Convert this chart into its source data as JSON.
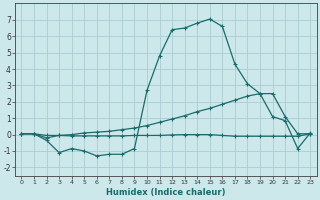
{
  "background_color": "#cce8eb",
  "grid_color": "#aacdd2",
  "line_color": "#1a6b6b",
  "marker": "+",
  "xlabel": "Humidex (Indice chaleur)",
  "xlim": [
    -0.5,
    23.5
  ],
  "ylim": [
    -2.5,
    8.0
  ],
  "xticks": [
    0,
    1,
    2,
    3,
    4,
    5,
    6,
    7,
    8,
    9,
    10,
    11,
    12,
    13,
    14,
    15,
    16,
    17,
    18,
    19,
    20,
    21,
    22,
    23
  ],
  "yticks": [
    -2,
    -1,
    0,
    1,
    2,
    3,
    4,
    5,
    6,
    7
  ],
  "curve1_x": [
    0,
    1,
    2,
    3,
    4,
    5,
    6,
    7,
    8,
    9,
    10,
    11,
    12,
    13,
    14,
    15,
    16,
    17,
    18,
    19,
    20,
    21,
    22,
    23
  ],
  "curve1_y": [
    0.05,
    0.05,
    -0.35,
    -1.1,
    -0.85,
    -1.0,
    -1.3,
    -1.2,
    -1.2,
    -0.85,
    2.7,
    4.8,
    6.4,
    6.5,
    6.8,
    7.05,
    6.6,
    4.3,
    3.1,
    2.5,
    1.1,
    0.85,
    -0.85,
    0.1
  ],
  "curve2_x": [
    0,
    1,
    2,
    3,
    4,
    5,
    6,
    7,
    8,
    9,
    10,
    11,
    12,
    13,
    14,
    15,
    16,
    17,
    18,
    19,
    20,
    21,
    22,
    23
  ],
  "curve2_y": [
    0.05,
    0.05,
    -0.2,
    -0.05,
    0.0,
    0.1,
    0.15,
    0.2,
    0.3,
    0.4,
    0.55,
    0.75,
    0.95,
    1.15,
    1.4,
    1.6,
    1.85,
    2.1,
    2.35,
    2.5,
    2.5,
    1.1,
    0.05,
    0.05
  ],
  "curve3_x": [
    0,
    1,
    2,
    3,
    4,
    5,
    6,
    7,
    8,
    9,
    10,
    11,
    12,
    13,
    14,
    15,
    16,
    17,
    18,
    19,
    20,
    21,
    22,
    23
  ],
  "curve3_y": [
    0.05,
    0.05,
    -0.05,
    -0.05,
    -0.08,
    -0.08,
    -0.08,
    -0.08,
    -0.08,
    -0.05,
    -0.05,
    -0.05,
    -0.02,
    0.0,
    0.0,
    0.0,
    -0.05,
    -0.1,
    -0.1,
    -0.1,
    -0.1,
    -0.1,
    -0.1,
    0.05
  ]
}
